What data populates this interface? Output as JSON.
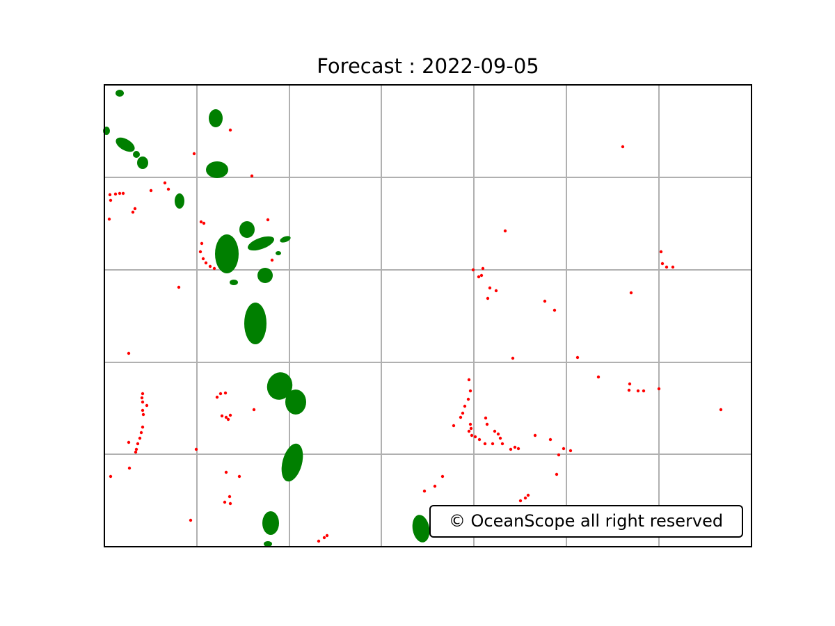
{
  "title": "Forecast : 2022-09-05",
  "copyright": "© OceanScope all right reserved"
}
